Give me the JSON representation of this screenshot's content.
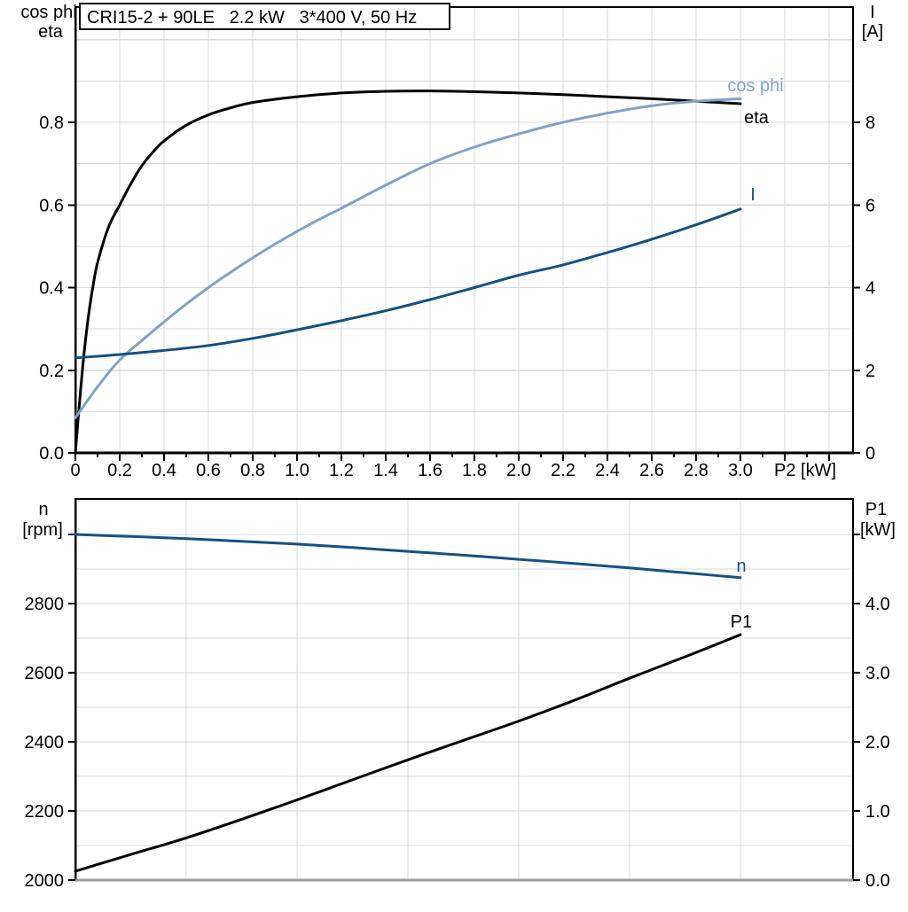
{
  "title_box": {
    "text": "CRI15-2 + 90LE   2.2 kW   3*400 V, 50 Hz"
  },
  "colors": {
    "black": "#000000",
    "dark_blue": "#17507F",
    "light_blue": "#82A2C2",
    "grid": "#D9D9D9",
    "frame": "#000000",
    "bottom_axis_gray": "#9D9D9D",
    "background": "#FFFFFF"
  },
  "chart_data": [
    {
      "type": "line",
      "title": "CRI15-2 + 90LE   2.2 kW   3*400 V, 50 Hz",
      "x_axis": {
        "label": "P2 [kW]",
        "range": [
          0,
          3.51
        ],
        "major_tick_step": 0.2,
        "minor_tick_step": 0.1,
        "tick_labels": [
          "0",
          "0.2",
          "0.4",
          "0.6",
          "0.8",
          "1.0",
          "1.2",
          "1.4",
          "1.6",
          "1.8",
          "2.0",
          "2.2",
          "2.4",
          "2.6",
          "2.8",
          "3.0"
        ],
        "grid": true
      },
      "left_axis": {
        "title_lines": [
          "cos phi",
          "eta"
        ],
        "range": [
          0,
          1.08
        ],
        "labeled_ticks": [
          {
            "v": 0.0,
            "t": "0.0"
          },
          {
            "v": 0.2,
            "t": "0.2"
          },
          {
            "v": 0.4,
            "t": "0.4"
          },
          {
            "v": 0.6,
            "t": "0.6"
          },
          {
            "v": 0.8,
            "t": "0.8"
          }
        ],
        "grid_step": 0.1
      },
      "right_axis": {
        "title_lines": [
          "I",
          "[A]"
        ],
        "range": [
          0,
          10.8
        ],
        "labeled_ticks": [
          {
            "v": 0,
            "t": "0"
          },
          {
            "v": 2,
            "t": "2"
          },
          {
            "v": 4,
            "t": "4"
          },
          {
            "v": 6,
            "t": "6"
          },
          {
            "v": 8,
            "t": "8"
          }
        ]
      },
      "series": [
        {
          "name": "eta",
          "label": "eta",
          "axis": "left",
          "color_key": "black",
          "points": [
            [
              0,
              0
            ],
            [
              0.02,
              0.13
            ],
            [
              0.04,
              0.245
            ],
            [
              0.06,
              0.335
            ],
            [
              0.08,
              0.405
            ],
            [
              0.1,
              0.46
            ],
            [
              0.15,
              0.547
            ],
            [
              0.2,
              0.6
            ],
            [
              0.25,
              0.651
            ],
            [
              0.3,
              0.695
            ],
            [
              0.35,
              0.728
            ],
            [
              0.4,
              0.755
            ],
            [
              0.5,
              0.793
            ],
            [
              0.6,
              0.818
            ],
            [
              0.7,
              0.835
            ],
            [
              0.8,
              0.848
            ],
            [
              1,
              0.862
            ],
            [
              1.2,
              0.871
            ],
            [
              1.4,
              0.875
            ],
            [
              1.6,
              0.876
            ],
            [
              1.8,
              0.874
            ],
            [
              2,
              0.871
            ],
            [
              2.2,
              0.867
            ],
            [
              2.4,
              0.862
            ],
            [
              2.6,
              0.857
            ],
            [
              2.8,
              0.851
            ],
            [
              3,
              0.845
            ]
          ]
        },
        {
          "name": "cos-phi",
          "label": "cos phi",
          "axis": "left",
          "color_key": "light_blue",
          "points": [
            [
              0,
              0.085
            ],
            [
              0.1,
              0.16
            ],
            [
              0.2,
              0.225
            ],
            [
              0.3,
              0.272
            ],
            [
              0.4,
              0.317
            ],
            [
              0.5,
              0.36
            ],
            [
              0.6,
              0.4
            ],
            [
              0.7,
              0.437
            ],
            [
              0.8,
              0.472
            ],
            [
              0.9,
              0.505
            ],
            [
              1,
              0.536
            ],
            [
              1.1,
              0.565
            ],
            [
              1.2,
              0.592
            ],
            [
              1.4,
              0.648
            ],
            [
              1.6,
              0.7
            ],
            [
              1.8,
              0.74
            ],
            [
              2,
              0.772
            ],
            [
              2.2,
              0.8
            ],
            [
              2.4,
              0.822
            ],
            [
              2.6,
              0.84
            ],
            [
              2.8,
              0.851
            ],
            [
              3,
              0.857
            ]
          ]
        },
        {
          "name": "current",
          "label": "I",
          "axis": "right",
          "color_key": "dark_blue",
          "points": [
            [
              0,
              2.3
            ],
            [
              0.2,
              2.38
            ],
            [
              0.4,
              2.48
            ],
            [
              0.6,
              2.6
            ],
            [
              0.8,
              2.77
            ],
            [
              1,
              2.98
            ],
            [
              1.2,
              3.2
            ],
            [
              1.4,
              3.44
            ],
            [
              1.6,
              3.71
            ],
            [
              1.8,
              4.0
            ],
            [
              2,
              4.3
            ],
            [
              2.2,
              4.55
            ],
            [
              2.4,
              4.85
            ],
            [
              2.6,
              5.17
            ],
            [
              2.8,
              5.52
            ],
            [
              3,
              5.9
            ]
          ]
        }
      ]
    },
    {
      "type": "line",
      "title": "",
      "x_axis": {
        "label": "",
        "range": [
          0,
          3.51
        ],
        "grid_step": 0.5,
        "tick_labels": [],
        "grid": true
      },
      "left_axis": {
        "title_lines": [
          "n",
          "[rpm]"
        ],
        "range": [
          2000,
          3102
        ],
        "labeled_ticks": [
          {
            "v": 2000,
            "t": "2000"
          },
          {
            "v": 2200,
            "t": "2200"
          },
          {
            "v": 2400,
            "t": "2400"
          },
          {
            "v": 2600,
            "t": "2600"
          },
          {
            "v": 2800,
            "t": "2800"
          }
        ],
        "unlabeled_ticks": [
          3000
        ],
        "grid_step": 100
      },
      "right_axis": {
        "title_lines": [
          "P1",
          "[kW]"
        ],
        "range": [
          0,
          5.51
        ],
        "labeled_ticks": [
          {
            "v": 0,
            "t": "0.0"
          },
          {
            "v": 1,
            "t": "1.0"
          },
          {
            "v": 2,
            "t": "2.0"
          },
          {
            "v": 3,
            "t": "3.0"
          },
          {
            "v": 4,
            "t": "4.0"
          }
        ],
        "unlabeled_ticks": [
          5
        ]
      },
      "series": [
        {
          "name": "speed",
          "label": "n",
          "axis": "left",
          "color_key": "dark_blue",
          "points": [
            [
              0,
              3000
            ],
            [
              0.25,
              2994
            ],
            [
              0.5,
              2988
            ],
            [
              0.75,
              2980
            ],
            [
              1,
              2972
            ],
            [
              1.25,
              2962
            ],
            [
              1.5,
              2951
            ],
            [
              1.75,
              2940
            ],
            [
              2,
              2928
            ],
            [
              2.25,
              2916
            ],
            [
              2.5,
              2903
            ],
            [
              2.75,
              2889
            ],
            [
              3,
              2875
            ]
          ]
        },
        {
          "name": "input-power",
          "label": "P1",
          "axis": "right",
          "color_key": "black",
          "points": [
            [
              0,
              0.13
            ],
            [
              0.25,
              0.37
            ],
            [
              0.5,
              0.61
            ],
            [
              0.75,
              0.88
            ],
            [
              1,
              1.16
            ],
            [
              1.25,
              1.45
            ],
            [
              1.5,
              1.74
            ],
            [
              1.75,
              2.02
            ],
            [
              2,
              2.3
            ],
            [
              2.25,
              2.6
            ],
            [
              2.5,
              2.92
            ],
            [
              2.75,
              3.23
            ],
            [
              3,
              3.55
            ]
          ]
        }
      ]
    }
  ]
}
